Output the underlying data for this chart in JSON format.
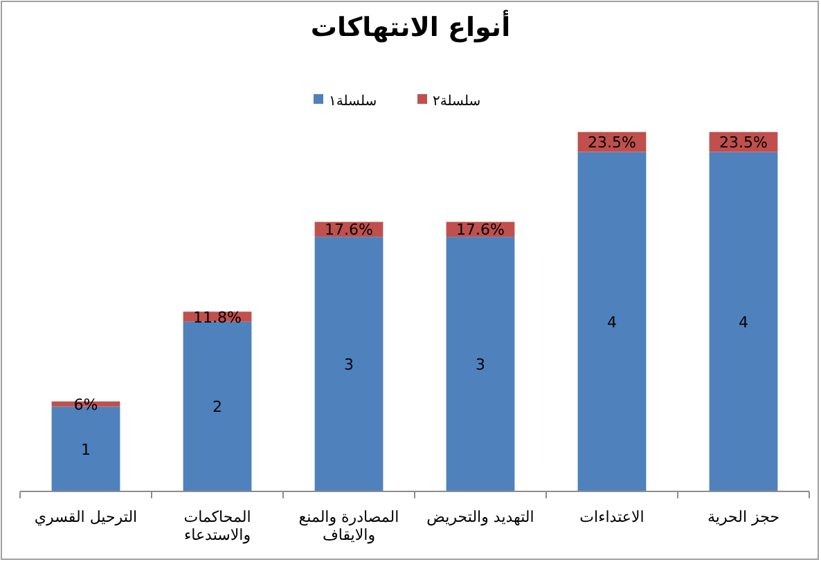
{
  "chart_data": {
    "type": "bar",
    "title": "أنواع الانتهاكات",
    "stacked": true,
    "legend": "top",
    "categories": [
      "الترحيل القسري",
      "المحاكمات والاستدعاء",
      "المصادرة والمنع والايقاف",
      "التهديد والتحريض",
      "الاعتداءات",
      "حجز الحرية"
    ],
    "series": [
      {
        "name": "سلسلة١",
        "color": "#4f81bd",
        "values": [
          1,
          2,
          3,
          3,
          4,
          4
        ],
        "value_labels": [
          "1",
          "2",
          "3",
          "3",
          "4",
          "4"
        ]
      },
      {
        "name": "سلسلة٢",
        "color": "#c0504d",
        "values": [
          0.06,
          0.118,
          0.176,
          0.176,
          0.235,
          0.235
        ],
        "value_labels": [
          "6%",
          "11.8%",
          "17.6%",
          "17.6%",
          "23.5%",
          "23.5%"
        ]
      }
    ]
  }
}
